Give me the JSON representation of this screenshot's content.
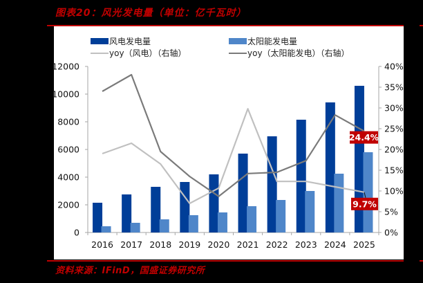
{
  "header": {
    "title": "图表20：风光发电量（单位：亿千瓦时）"
  },
  "footer": {
    "source": "资料来源：IFinD，国盛证券研究所"
  },
  "colors": {
    "accent_red": "#c00000",
    "wind_bar": "#003e98",
    "solar_bar": "#4f86c9",
    "wind_yoy_line": "#c0c0c0",
    "solar_yoy_line": "#7a7a7a",
    "axis": "#a6a6a6"
  },
  "legend": {
    "wind_bar": "风电发电量",
    "solar_bar": "太阳能发电量",
    "wind_yoy": "yoy（风电）（右轴）",
    "solar_yoy": "yoy（太阳能发电）（右轴）"
  },
  "callouts": {
    "solar_2025": "24.4%",
    "wind_2025": "9.7%"
  },
  "chart_data": {
    "type": "bar",
    "title": "图表20：风光发电量（单位：亿千瓦时）",
    "categories": [
      "2016",
      "2017",
      "2018",
      "2019",
      "2020",
      "2021",
      "2022",
      "2023",
      "2024",
      "2025"
    ],
    "series": [
      {
        "name": "风电发电量",
        "type": "bar",
        "axis": "left",
        "values": [
          2150,
          2750,
          3300,
          3650,
          4200,
          5700,
          6950,
          8150,
          9400,
          10600
        ]
      },
      {
        "name": "太阳能发电量",
        "type": "bar",
        "axis": "left",
        "values": [
          450,
          700,
          950,
          1250,
          1450,
          1900,
          2350,
          3000,
          4250,
          5800
        ]
      },
      {
        "name": "yoy（风电）（右轴）",
        "type": "line",
        "axis": "right",
        "values": [
          19.0,
          21.5,
          16.5,
          7.0,
          10.7,
          29.8,
          12.3,
          12.3,
          11.0,
          9.7
        ]
      },
      {
        "name": "yoy（太阳能发电）（右轴）",
        "type": "line",
        "axis": "right",
        "values": [
          34.0,
          38.0,
          19.5,
          13.5,
          8.7,
          14.2,
          14.5,
          17.3,
          28.3,
          24.4
        ]
      }
    ],
    "xlabel": "",
    "ylabel": "",
    "ylim": [
      0,
      12000
    ],
    "y_ticks": [
      "0",
      "2000",
      "4000",
      "6000",
      "8000",
      "10000",
      "12000"
    ],
    "y2lim": [
      0,
      40
    ],
    "y2_ticks": [
      "0%",
      "5%",
      "10%",
      "15%",
      "20%",
      "25%",
      "30%",
      "35%",
      "40%"
    ],
    "annotations": [
      "24.4%",
      "9.7%"
    ],
    "grid": false,
    "legend_position": "top"
  }
}
